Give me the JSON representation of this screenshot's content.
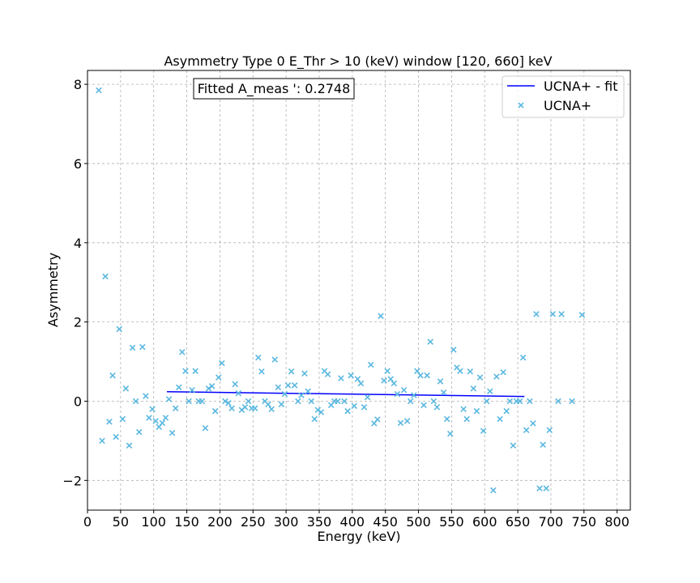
{
  "chart_data": {
    "type": "scatter",
    "title": "Asymmetry Type 0 E_Thr > 10 (keV) window [120, 660] keV",
    "xlabel": "Energy (keV)",
    "ylabel": "Asymmetry",
    "xlim": [
      0,
      820
    ],
    "ylim": [
      -2.75,
      8.35
    ],
    "xticks": [
      0,
      50,
      100,
      150,
      200,
      250,
      300,
      350,
      400,
      450,
      500,
      550,
      600,
      650,
      700,
      750,
      800
    ],
    "yticks": [
      -2,
      0,
      2,
      4,
      6,
      8
    ],
    "ytick_labels": [
      "−2",
      "0",
      "2",
      "4",
      "6",
      "8"
    ],
    "grid": true,
    "annotation": "Fitted A_meas ': 0.2748",
    "legend_position": "top-right",
    "colors": {
      "fit": "#0000ff",
      "points": "#5bb8e0",
      "grid": "#b0b0b0"
    },
    "series": [
      {
        "name": "UCNA+ - fit",
        "kind": "line",
        "x": [
          120,
          660
        ],
        "y": [
          0.24,
          0.12
        ]
      },
      {
        "name": "UCNA+",
        "kind": "scatter",
        "marker": "x",
        "points": [
          [
            17,
            7.85
          ],
          [
            22,
            -1.0
          ],
          [
            27,
            3.15
          ],
          [
            33,
            -0.52
          ],
          [
            38,
            0.65
          ],
          [
            43,
            -0.9
          ],
          [
            48,
            1.82
          ],
          [
            53,
            -0.45
          ],
          [
            58,
            0.32
          ],
          [
            63,
            -1.12
          ],
          [
            68,
            1.35
          ],
          [
            73,
            0.0
          ],
          [
            78,
            -0.78
          ],
          [
            83,
            1.37
          ],
          [
            88,
            0.13
          ],
          [
            93,
            -0.42
          ],
          [
            98,
            -0.2
          ],
          [
            103,
            -0.5
          ],
          [
            108,
            -0.65
          ],
          [
            113,
            -0.55
          ],
          [
            118,
            -0.42
          ],
          [
            123,
            0.05
          ],
          [
            128,
            -0.8
          ],
          [
            133,
            -0.18
          ],
          [
            138,
            0.35
          ],
          [
            143,
            1.24
          ],
          [
            148,
            0.76
          ],
          [
            153,
            0.0
          ],
          [
            158,
            0.28
          ],
          [
            163,
            0.76
          ],
          [
            168,
            0.0
          ],
          [
            173,
            0.0
          ],
          [
            178,
            -0.68
          ],
          [
            183,
            0.32
          ],
          [
            188,
            0.38
          ],
          [
            193,
            -0.25
          ],
          [
            198,
            0.6
          ],
          [
            203,
            0.96
          ],
          [
            208,
            0.0
          ],
          [
            213,
            -0.05
          ],
          [
            218,
            -0.18
          ],
          [
            223,
            0.43
          ],
          [
            228,
            0.2
          ],
          [
            233,
            -0.22
          ],
          [
            238,
            -0.15
          ],
          [
            243,
            0.0
          ],
          [
            248,
            -0.18
          ],
          [
            253,
            -0.18
          ],
          [
            258,
            1.1
          ],
          [
            263,
            0.75
          ],
          [
            268,
            0.0
          ],
          [
            273,
            -0.08
          ],
          [
            278,
            -0.2
          ],
          [
            283,
            1.05
          ],
          [
            288,
            0.35
          ],
          [
            293,
            -0.08
          ],
          [
            298,
            0.18
          ],
          [
            303,
            0.4
          ],
          [
            308,
            0.75
          ],
          [
            313,
            0.4
          ],
          [
            318,
            0.0
          ],
          [
            323,
            0.15
          ],
          [
            328,
            0.7
          ],
          [
            333,
            0.25
          ],
          [
            338,
            0.0
          ],
          [
            343,
            -0.45
          ],
          [
            348,
            -0.22
          ],
          [
            353,
            -0.28
          ],
          [
            358,
            0.76
          ],
          [
            363,
            0.68
          ],
          [
            368,
            -0.1
          ],
          [
            373,
            0.0
          ],
          [
            378,
            0.0
          ],
          [
            383,
            0.58
          ],
          [
            388,
            0.0
          ],
          [
            393,
            -0.25
          ],
          [
            398,
            0.65
          ],
          [
            403,
            -0.12
          ],
          [
            408,
            0.56
          ],
          [
            413,
            0.45
          ],
          [
            418,
            -0.15
          ],
          [
            423,
            0.1
          ],
          [
            428,
            0.92
          ],
          [
            433,
            -0.56
          ],
          [
            438,
            -0.46
          ],
          [
            443,
            2.15
          ],
          [
            448,
            0.52
          ],
          [
            453,
            0.76
          ],
          [
            458,
            0.56
          ],
          [
            463,
            0.45
          ],
          [
            468,
            0.18
          ],
          [
            473,
            -0.55
          ],
          [
            478,
            0.28
          ],
          [
            483,
            -0.5
          ],
          [
            488,
            0.0
          ],
          [
            493,
            0.15
          ],
          [
            498,
            0.76
          ],
          [
            503,
            0.65
          ],
          [
            508,
            -0.1
          ],
          [
            513,
            0.65
          ],
          [
            518,
            1.5
          ],
          [
            523,
            0.0
          ],
          [
            528,
            -0.15
          ],
          [
            533,
            0.5
          ],
          [
            538,
            0.22
          ],
          [
            543,
            -0.45
          ],
          [
            548,
            -0.82
          ],
          [
            553,
            1.3
          ],
          [
            558,
            0.85
          ],
          [
            563,
            0.76
          ],
          [
            568,
            -0.2
          ],
          [
            573,
            -0.45
          ],
          [
            578,
            0.75
          ],
          [
            583,
            0.32
          ],
          [
            588,
            -0.25
          ],
          [
            593,
            0.6
          ],
          [
            598,
            -0.75
          ],
          [
            603,
            0.0
          ],
          [
            608,
            0.25
          ],
          [
            613,
            -2.25
          ],
          [
            618,
            0.62
          ],
          [
            623,
            -0.45
          ],
          [
            628,
            0.73
          ],
          [
            633,
            -0.25
          ],
          [
            638,
            0.0
          ],
          [
            643,
            -1.12
          ],
          [
            648,
            0.0
          ],
          [
            653,
            0.0
          ],
          [
            658,
            1.1
          ],
          [
            663,
            -0.73
          ],
          [
            668,
            0.0
          ],
          [
            673,
            -0.56
          ],
          [
            678,
            2.2
          ],
          [
            683,
            -2.2
          ],
          [
            688,
            -1.1
          ],
          [
            693,
            -2.2
          ],
          [
            698,
            -0.73
          ],
          [
            703,
            2.2
          ],
          [
            711,
            0.0
          ],
          [
            716,
            2.2
          ],
          [
            732,
            0.0
          ],
          [
            747,
            2.18
          ]
        ]
      }
    ]
  }
}
